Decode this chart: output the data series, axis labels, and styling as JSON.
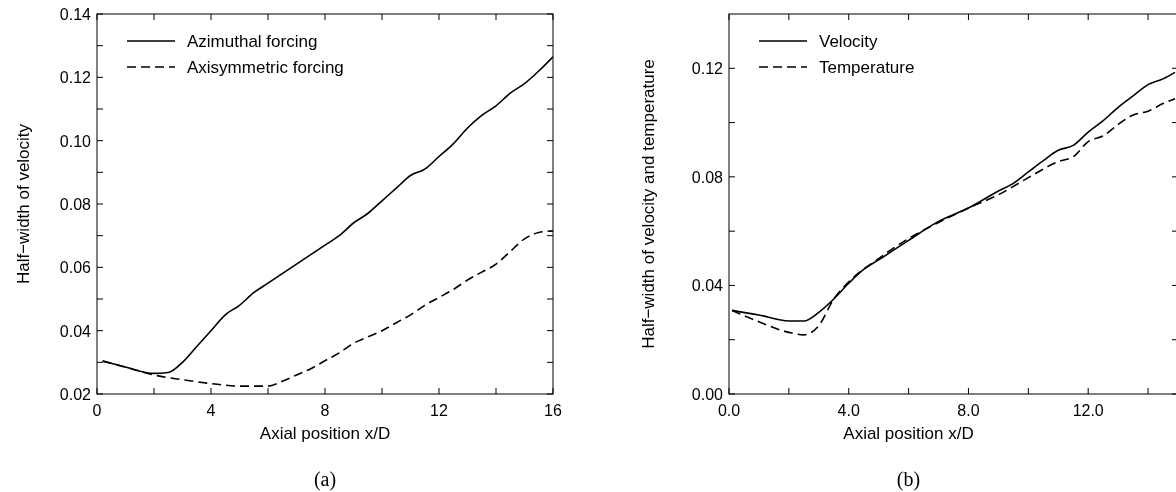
{
  "chart_data": [
    {
      "type": "line",
      "xlabel": "Axial position x/D",
      "ylabel": "Half−width of velocity",
      "annotations": [
        "(a)"
      ],
      "legend": "top left",
      "grid": false,
      "xlim": [
        0,
        16
      ],
      "xticks": [
        0,
        {
          "value": 2,
          "label": null
        },
        4,
        {
          "value": 6,
          "label": null
        },
        8,
        {
          "value": 10,
          "label": null
        },
        12,
        {
          "value": 14,
          "label": null
        },
        16
      ],
      "ylim": [
        0.02,
        0.14
      ],
      "yticks": [
        {
          "value": 0.02,
          "label": "0.02"
        },
        {
          "value": 0.03,
          "label": null
        },
        {
          "value": 0.04,
          "label": "0.04"
        },
        {
          "value": 0.05,
          "label": null
        },
        {
          "value": 0.06,
          "label": "0.06"
        },
        {
          "value": 0.07,
          "label": null
        },
        {
          "value": 0.08,
          "label": "0.08"
        },
        {
          "value": 0.09,
          "label": null
        },
        {
          "value": 0.1,
          "label": "0.10"
        },
        {
          "value": 0.11,
          "label": null
        },
        {
          "value": 0.12,
          "label": "0.12"
        },
        {
          "value": 0.13,
          "label": null
        },
        {
          "value": 0.14,
          "label": "0.14"
        }
      ],
      "series": [
        {
          "name": "Azimuthal forcing",
          "color": "#000000",
          "line_style": "solid",
          "x": [
            0.2,
            1,
            2,
            2.5,
            3,
            3.5,
            4,
            4.5,
            5,
            5.5,
            6,
            6.5,
            7,
            7.5,
            8,
            8.5,
            9,
            9.5,
            10,
            10.5,
            11,
            11.5,
            12,
            12.5,
            13,
            13.5,
            14,
            14.5,
            15,
            15.5,
            16
          ],
          "values": [
            0.0304,
            0.0285,
            0.0265,
            0.0268,
            0.03,
            0.035,
            0.04,
            0.045,
            0.048,
            0.052,
            0.055,
            0.058,
            0.061,
            0.064,
            0.067,
            0.07,
            0.074,
            0.077,
            0.081,
            0.085,
            0.089,
            0.091,
            0.095,
            0.099,
            0.104,
            0.108,
            0.111,
            0.115,
            0.118,
            0.122,
            0.1265
          ]
        },
        {
          "name": "Axisymmetric forcing",
          "color": "#000000",
          "line_style": "dashed",
          "x": [
            0.2,
            1,
            2,
            3,
            4,
            5,
            6,
            6.5,
            7,
            7.5,
            8,
            8.5,
            9,
            9.5,
            10,
            10.5,
            11,
            11.5,
            12,
            12.5,
            13,
            13.5,
            14,
            14.5,
            15,
            15.5,
            16
          ],
          "values": [
            0.0304,
            0.0285,
            0.026,
            0.0245,
            0.0233,
            0.0225,
            0.0225,
            0.024,
            0.026,
            0.028,
            0.0305,
            0.033,
            0.036,
            0.038,
            0.04,
            0.0425,
            0.045,
            0.048,
            0.0505,
            0.053,
            0.056,
            0.0585,
            0.061,
            0.065,
            0.069,
            0.071,
            0.0715
          ]
        }
      ]
    },
    {
      "type": "line",
      "xlabel": "Axial position x/D",
      "ylabel": "Half−width of velocity and temperature",
      "annotations": [
        "(b)"
      ],
      "legend": "top left",
      "grid": false,
      "xlim": [
        0,
        15
      ],
      "xticks": [
        {
          "value": 0,
          "label": "0.0"
        },
        {
          "value": 2,
          "label": null
        },
        {
          "value": 4,
          "label": "4.0"
        },
        {
          "value": 6,
          "label": null
        },
        {
          "value": 8,
          "label": "8.0"
        },
        {
          "value": 10,
          "label": null
        },
        {
          "value": 12,
          "label": "12.0"
        },
        {
          "value": 14,
          "label": null
        }
      ],
      "ylim": [
        0,
        0.14
      ],
      "yticks": [
        {
          "value": 0,
          "label": "0.00"
        },
        {
          "value": 0.02,
          "label": null
        },
        {
          "value": 0.04,
          "label": "0.04"
        },
        {
          "value": 0.06,
          "label": null
        },
        {
          "value": 0.08,
          "label": "0.08"
        },
        {
          "value": 0.1,
          "label": null
        },
        {
          "value": 0.12,
          "label": "0.12"
        }
      ],
      "series": [
        {
          "name": "Velocity",
          "color": "#000000",
          "line_style": "solid",
          "x": [
            0.1,
            1,
            2,
            2.5,
            3,
            3.5,
            4,
            4.5,
            5,
            6,
            7,
            8,
            9,
            9.5,
            10,
            10.5,
            11,
            11.5,
            12,
            12.5,
            13,
            13.5,
            14,
            14.5,
            14.9
          ],
          "values": [
            0.0308,
            0.0291,
            0.0269,
            0.0269,
            0.0301,
            0.035,
            0.0408,
            0.0459,
            0.0494,
            0.0566,
            0.0636,
            0.0685,
            0.0748,
            0.0776,
            0.0818,
            0.086,
            0.0898,
            0.0916,
            0.0965,
            0.1007,
            0.1056,
            0.1098,
            0.114,
            0.1161,
            0.1185
          ]
        },
        {
          "name": "Temperature",
          "color": "#000000",
          "line_style": "dashed",
          "x": [
            0.1,
            1,
            2,
            2.5,
            3,
            3.5,
            4,
            5,
            6,
            7,
            8,
            9,
            10,
            11,
            11.5,
            12,
            12.5,
            13,
            13.5,
            14,
            14.5,
            14.9
          ],
          "values": [
            0.0308,
            0.0266,
            0.0227,
            0.0218,
            0.0252,
            0.035,
            0.0413,
            0.0499,
            0.0573,
            0.0632,
            0.0685,
            0.0734,
            0.0797,
            0.0856,
            0.0874,
            0.093,
            0.0951,
            0.0993,
            0.1028,
            0.1042,
            0.107,
            0.1088
          ]
        }
      ]
    }
  ]
}
